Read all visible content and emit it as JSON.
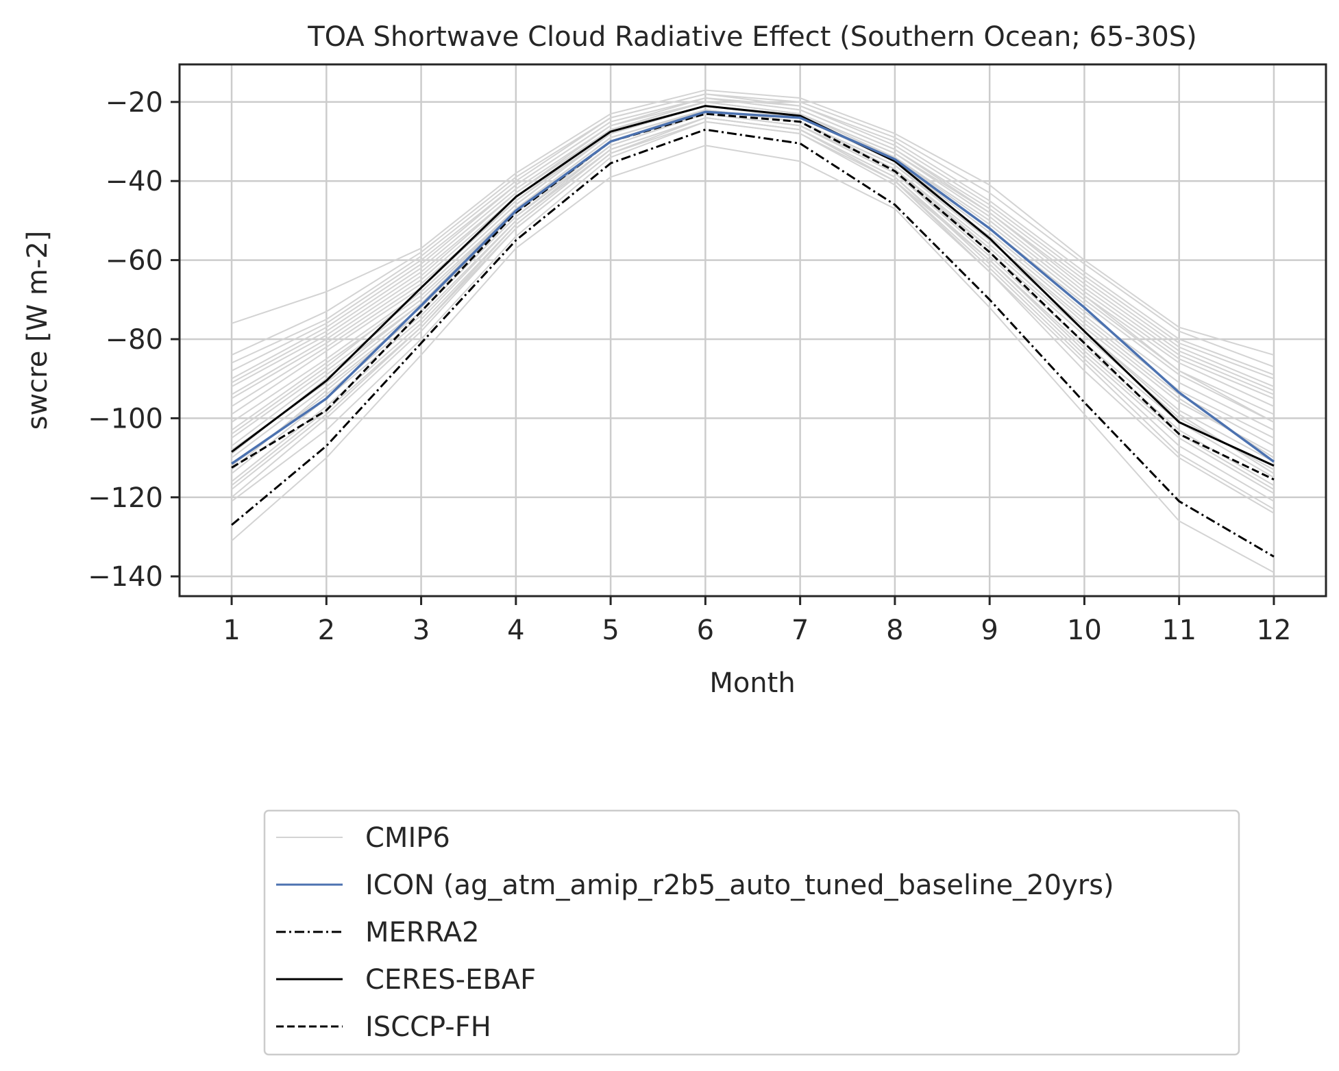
{
  "chart_data": {
    "type": "line",
    "title": "TOA Shortwave Cloud Radiative Effect (Southern Ocean; 65-30S)",
    "xlabel": "Month",
    "ylabel": "swcre [W m-2]",
    "x": [
      1,
      2,
      3,
      4,
      5,
      6,
      7,
      8,
      9,
      10,
      11,
      12
    ],
    "xticks": [
      "1",
      "2",
      "3",
      "4",
      "5",
      "6",
      "7",
      "8",
      "9",
      "10",
      "11",
      "12"
    ],
    "yticks": [
      -20,
      -40,
      -60,
      -80,
      -100,
      -120,
      -140
    ],
    "ytick_labels": [
      "−20",
      "−40",
      "−60",
      "−80",
      "−100",
      "−120",
      "−140"
    ],
    "xlim": [
      0.45,
      12.55
    ],
    "ylim": [
      -145,
      -10.5
    ],
    "grid": true,
    "legend_position": "below plot, centered",
    "colors": {
      "cmip6": "#d3d3d3",
      "icon": "#4c72b0",
      "obs": "#000000",
      "grid": "#cccccc",
      "axes": "#262626"
    },
    "cmip6": {
      "name": "CMIP6",
      "members": [
        [
          -76,
          -68,
          -57,
          -38,
          -23,
          -17,
          -19,
          -28,
          -41,
          -60,
          -77,
          -84
        ],
        [
          -84,
          -73,
          -58,
          -39,
          -24,
          -18,
          -20,
          -29,
          -43,
          -61,
          -78,
          -87
        ],
        [
          -86,
          -75,
          -59,
          -40,
          -24,
          -18,
          -21,
          -30,
          -45,
          -63,
          -80,
          -89
        ],
        [
          -88,
          -76,
          -60,
          -41,
          -25,
          -19,
          -21,
          -31,
          -46,
          -64,
          -81,
          -90
        ],
        [
          -90,
          -77,
          -61,
          -41,
          -25,
          -19,
          -22,
          -32,
          -47,
          -65,
          -82,
          -92
        ],
        [
          -91,
          -78,
          -62,
          -42,
          -26,
          -19,
          -22,
          -32,
          -48,
          -66,
          -83,
          -93
        ],
        [
          -92,
          -79,
          -63,
          -43,
          -26,
          -20,
          -23,
          -33,
          -48,
          -67,
          -84,
          -94
        ],
        [
          -94,
          -80,
          -64,
          -43,
          -27,
          -20,
          -23,
          -33,
          -49,
          -68,
          -85,
          -95
        ],
        [
          -95,
          -81,
          -65,
          -44,
          -27,
          -20,
          -23,
          -34,
          -50,
          -69,
          -86,
          -97
        ],
        [
          -97,
          -82,
          -66,
          -45,
          -27,
          -21,
          -24,
          -34,
          -51,
          -70,
          -88,
          -99
        ],
        [
          -99,
          -83,
          -67,
          -45,
          -28,
          -21,
          -24,
          -35,
          -52,
          -71,
          -89,
          -101
        ],
        [
          -101,
          -85,
          -68,
          -46,
          -28,
          -21,
          -24,
          -35,
          -53,
          -73,
          -91,
          -103
        ],
        [
          -103,
          -86,
          -69,
          -47,
          -29,
          -22,
          -25,
          -36,
          -54,
          -74,
          -93,
          -105
        ],
        [
          -105,
          -88,
          -70,
          -47,
          -29,
          -22,
          -25,
          -36,
          -55,
          -75,
          -94,
          -107
        ],
        [
          -107,
          -89,
          -71,
          -48,
          -30,
          -22,
          -25,
          -37,
          -56,
          -77,
          -96,
          -109
        ],
        [
          -108,
          -91,
          -72,
          -48,
          -30,
          -23,
          -26,
          -37,
          -57,
          -78,
          -98,
          -111
        ],
        [
          -110,
          -92,
          -73,
          -49,
          -31,
          -23,
          -26,
          -38,
          -58,
          -79,
          -100,
          -113
        ],
        [
          -112,
          -94,
          -74,
          -50,
          -31,
          -23,
          -26,
          -38,
          -59,
          -81,
          -101,
          -115
        ],
        [
          -114,
          -95,
          -75,
          -50,
          -32,
          -24,
          -27,
          -39,
          -60,
          -82,
          -103,
          -117
        ],
        [
          -116,
          -97,
          -76,
          -51,
          -32,
          -24,
          -27,
          -39,
          -61,
          -84,
          -105,
          -119
        ],
        [
          -118,
          -99,
          -77,
          -52,
          -33,
          -24,
          -27,
          -40,
          -62,
          -85,
          -107,
          -121
        ],
        [
          -120,
          -100,
          -78,
          -52,
          -33,
          -25,
          -28,
          -40,
          -63,
          -86,
          -109,
          -123
        ],
        [
          -104,
          -87,
          -68,
          -46,
          -28,
          -21,
          -24,
          -34,
          -50,
          -69,
          -88,
          -101
        ],
        [
          -109,
          -90,
          -71,
          -47,
          -29,
          -22,
          -25,
          -36,
          -55,
          -76,
          -95,
          -110
        ],
        [
          -113,
          -93,
          -73,
          -49,
          -30,
          -23,
          -26,
          -38,
          -57,
          -78,
          -99,
          -114
        ],
        [
          -117,
          -98,
          -77,
          -51,
          -32,
          -24,
          -27,
          -40,
          -60,
          -83,
          -104,
          -118
        ],
        [
          -121,
          -103,
          -80,
          -54,
          -34,
          -25,
          -28,
          -41,
          -63,
          -88,
          -110,
          -124
        ],
        [
          -131,
          -110,
          -84,
          -57,
          -39,
          -31,
          -35,
          -47,
          -72,
          -99,
          -126,
          -139
        ]
      ]
    },
    "series": [
      {
        "name": "ICON (ag_atm_amip_r2b5_auto_tuned_baseline_20yrs)",
        "style": "solid",
        "color": "#4c72b0",
        "values": [
          -111.5,
          -95,
          -71.5,
          -47.5,
          -30,
          -22.5,
          -24,
          -34.5,
          -52,
          -72,
          -93.5,
          -111
        ]
      },
      {
        "name": "MERRA2",
        "style": "dashdot",
        "color": "#000000",
        "values": [
          -127,
          -107,
          -81,
          -55,
          -35.5,
          -27,
          -30.5,
          -46,
          -70,
          -96,
          -121,
          -135
        ]
      },
      {
        "name": "CERES-EBAF",
        "style": "solid",
        "color": "#000000",
        "values": [
          -108.5,
          -90.5,
          -67,
          -44,
          -27.5,
          -21,
          -23.5,
          -35,
          -54.5,
          -78,
          -101,
          -112
        ]
      },
      {
        "name": "ISCCP-FH",
        "style": "dashed",
        "color": "#000000",
        "values": [
          -112.5,
          -98,
          -73,
          -48,
          -30,
          -23,
          -25,
          -37.5,
          -58,
          -81,
          -104,
          -115.5
        ]
      }
    ],
    "legend": [
      {
        "label": "CMIP6",
        "style": "solid",
        "color": "#d3d3d3"
      },
      {
        "label": "ICON (ag_atm_amip_r2b5_auto_tuned_baseline_20yrs)",
        "style": "solid",
        "color": "#4c72b0"
      },
      {
        "label": "MERRA2",
        "style": "dashdot",
        "color": "#000000"
      },
      {
        "label": "CERES-EBAF",
        "style": "solid",
        "color": "#000000"
      },
      {
        "label": "ISCCP-FH",
        "style": "dashed",
        "color": "#000000"
      }
    ]
  }
}
